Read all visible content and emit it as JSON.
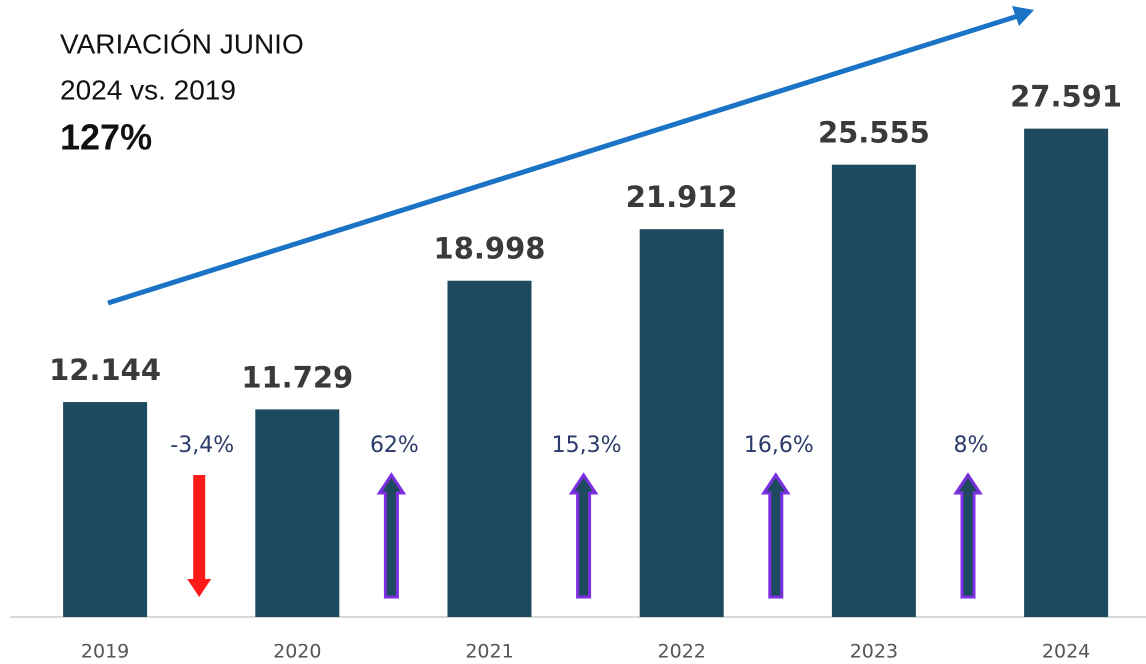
{
  "chart_data": {
    "type": "bar",
    "annotations": [
      "VARIACIÓN JUNIO",
      "2024 vs. 2019",
      "127%"
    ],
    "categories": [
      "2019",
      "2020",
      "2021",
      "2022",
      "2023",
      "2024"
    ],
    "values": [
      12144,
      11729,
      18998,
      21912,
      25555,
      27591
    ],
    "value_labels": [
      "12.144",
      "11.729",
      "18.998",
      "21.912",
      "25.555",
      "27.591"
    ],
    "changes": [
      {
        "value": -3.4,
        "label": "-3,4%"
      },
      {
        "value": 62,
        "label": "62%"
      },
      {
        "value": 15.3,
        "label": "15,3%"
      },
      {
        "value": 16.6,
        "label": "16,6%"
      },
      {
        "value": 8,
        "label": "8%"
      }
    ],
    "color": "#1d4a5e",
    "up_color": "#7b2fe0",
    "down_color": "#ff1a1a",
    "trend_color": "#1a73c4",
    "ylim": [
      0,
      30000
    ]
  }
}
